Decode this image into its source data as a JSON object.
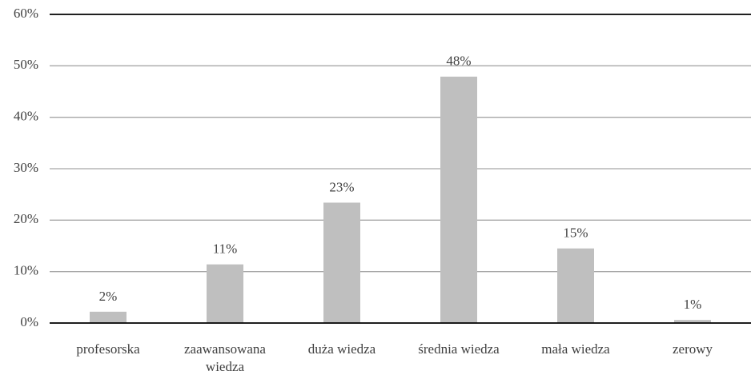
{
  "chart_data": {
    "type": "bar",
    "categories": [
      "profesorska",
      "zaawansowana wiedza",
      "duża wiedza",
      "średnia wiedza",
      "mała wiedza",
      "zerowy"
    ],
    "values": [
      2.2,
      11.4,
      23.4,
      47.9,
      14.5,
      0.6
    ],
    "value_labels": [
      "2%",
      "11%",
      "23%",
      "48%",
      "15%",
      "1%"
    ],
    "color": "#bfbfbf",
    "ylim": [
      0,
      60
    ],
    "yticks": [
      {
        "value": 0,
        "label": "0%"
      },
      {
        "value": 10,
        "label": "10%"
      },
      {
        "value": 20,
        "label": "20%"
      },
      {
        "value": 30,
        "label": "30%"
      },
      {
        "value": 40,
        "label": "40%"
      },
      {
        "value": 50,
        "label": "50%"
      },
      {
        "value": 60,
        "label": "60%"
      }
    ],
    "grid": true
  }
}
